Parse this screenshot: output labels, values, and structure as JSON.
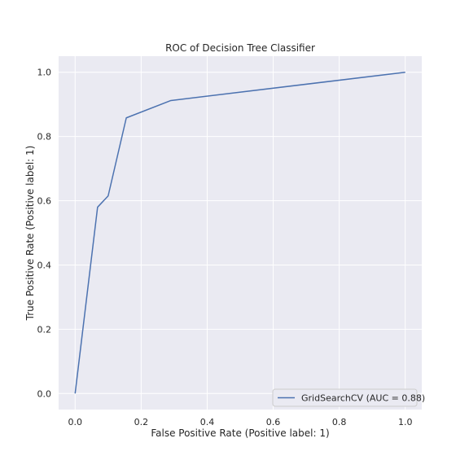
{
  "chart_data": {
    "type": "line",
    "title": "ROC of Decision Tree Classifier",
    "xlabel": "False Positive Rate (Positive label: 1)",
    "ylabel": "True Positive Rate (Positive label: 1)",
    "xlim": [
      -0.05,
      1.05
    ],
    "ylim": [
      -0.05,
      1.05
    ],
    "xticks": [
      0.0,
      0.2,
      0.4,
      0.6,
      0.8,
      1.0
    ],
    "yticks": [
      0.0,
      0.2,
      0.4,
      0.6,
      0.8,
      1.0
    ],
    "xtick_labels": [
      "0.0",
      "0.2",
      "0.4",
      "0.6",
      "0.8",
      "1.0"
    ],
    "ytick_labels": [
      "0.0",
      "0.2",
      "0.4",
      "0.6",
      "0.8",
      "1.0"
    ],
    "grid": true,
    "legend_position": "lower-right",
    "background_color": "#eaeaf2",
    "grid_color": "#ffffff",
    "series": [
      {
        "name": "GridSearchCV (AUC = 0.88)",
        "color": "#4c72b0",
        "x": [
          0.0,
          0.068,
          0.1,
          0.155,
          0.29,
          1.0
        ],
        "y": [
          0.0,
          0.58,
          0.615,
          0.858,
          0.912,
          1.0
        ]
      }
    ]
  }
}
